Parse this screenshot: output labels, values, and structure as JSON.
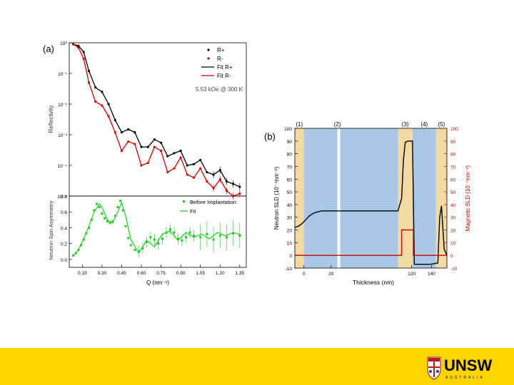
{
  "slide": {
    "panel_a_label": "(a)",
    "panel_b_label": "(b)",
    "logo_text": "UNSW",
    "logo_subtext": "AUSTRALIA",
    "footer_color": "#FFD400"
  },
  "chart_data": [
    {
      "type": "scatter",
      "panel": "a-top",
      "ylabel": "Reflectivity",
      "yscale": "log",
      "ylim": [
        1e-05,
        1
      ],
      "yticks": [
        "10⁰",
        "10⁻¹",
        "10⁻²",
        "10⁻³",
        "10⁻⁴",
        "10⁻⁵"
      ],
      "xlim": [
        0.05,
        1.4
      ],
      "legend": {
        "position": "top-right",
        "entries": [
          "R+",
          "R-",
          "Fit R+",
          "Fit R-"
        ]
      },
      "annotation": "5.53 kOe @ 300 K",
      "series": [
        {
          "name": "R+",
          "color": "#000000",
          "x": [
            0.08,
            0.12,
            0.16,
            0.2,
            0.25,
            0.3,
            0.35,
            0.4,
            0.45,
            0.5,
            0.55,
            0.6,
            0.65,
            0.7,
            0.75,
            0.8,
            0.85,
            0.9,
            0.95,
            1.0,
            1.05,
            1.1,
            1.15,
            1.2,
            1.25,
            1.3,
            1.35
          ],
          "y": [
            0.9,
            0.8,
            0.5,
            0.12,
            0.035,
            0.025,
            0.01,
            0.003,
            0.0012,
            0.0015,
            0.0012,
            0.0004,
            0.0004,
            0.0007,
            0.00055,
            0.0002,
            0.00025,
            0.0003,
            0.0001,
            0.00011,
            0.00015,
            6e-05,
            5e-05,
            7e-05,
            3e-05,
            2.5e-05,
            2e-05
          ]
        },
        {
          "name": "R-",
          "color": "#cc0000",
          "x": [
            0.08,
            0.12,
            0.16,
            0.2,
            0.25,
            0.3,
            0.35,
            0.4,
            0.45,
            0.5,
            0.55,
            0.6,
            0.65,
            0.7,
            0.75,
            0.8,
            0.85,
            0.9,
            0.95,
            1.0,
            1.05,
            1.1,
            1.15,
            1.2,
            1.25,
            1.3,
            1.35
          ],
          "y": [
            0.9,
            0.7,
            0.3,
            0.05,
            0.012,
            0.009,
            0.004,
            0.0012,
            0.0003,
            0.0006,
            0.0005,
            0.0001,
            0.00012,
            0.0004,
            0.0003,
            6e-05,
            8e-05,
            0.00018,
            5e-05,
            4e-05,
            8e-05,
            3e-05,
            1.8e-05,
            3.5e-05,
            1.5e-05,
            1e-05,
            1.2e-05
          ]
        }
      ]
    },
    {
      "type": "scatter",
      "panel": "a-bottom",
      "ylabel": "Neutron Spin Asymmetry",
      "xlabel": "Q (nm⁻¹)",
      "xlim": [
        0.05,
        1.4
      ],
      "ylim": [
        -0.1,
        0.8
      ],
      "xticks": [
        0.15,
        0.3,
        0.45,
        0.6,
        0.75,
        0.9,
        1.05,
        1.2,
        1.35
      ],
      "yticks": [
        0.0,
        0.2,
        0.4,
        0.6,
        0.8
      ],
      "legend": {
        "position": "top-right",
        "entries": [
          "Before Implantation",
          "Fit"
        ]
      },
      "series": [
        {
          "name": "Before Implantation",
          "color": "#22cc22",
          "x": [
            0.08,
            0.1,
            0.12,
            0.14,
            0.16,
            0.18,
            0.2,
            0.22,
            0.24,
            0.26,
            0.28,
            0.3,
            0.32,
            0.34,
            0.36,
            0.38,
            0.4,
            0.42,
            0.44,
            0.46,
            0.48,
            0.5,
            0.52,
            0.55,
            0.58,
            0.61,
            0.64,
            0.67,
            0.7,
            0.73,
            0.76,
            0.79,
            0.82,
            0.85,
            0.88,
            0.91,
            0.94,
            0.97,
            1.0,
            1.05,
            1.1,
            1.15,
            1.2,
            1.25,
            1.3,
            1.35
          ],
          "y": [
            0.05,
            0.08,
            0.12,
            0.18,
            0.25,
            0.33,
            0.4,
            0.5,
            0.62,
            0.7,
            0.66,
            0.58,
            0.52,
            0.48,
            0.46,
            0.48,
            0.55,
            0.66,
            0.74,
            0.62,
            0.42,
            0.27,
            0.18,
            0.12,
            0.1,
            0.14,
            0.22,
            0.28,
            0.25,
            0.2,
            0.26,
            0.34,
            0.38,
            0.34,
            0.26,
            0.24,
            0.28,
            0.34,
            0.3,
            0.28,
            0.32,
            0.25,
            0.3,
            0.28,
            0.33,
            0.3
          ]
        },
        {
          "name": "Fit",
          "color": "#22cc22",
          "x": [
            0.08,
            0.12,
            0.16,
            0.2,
            0.24,
            0.28,
            0.3,
            0.34,
            0.38,
            0.42,
            0.45,
            0.48,
            0.52,
            0.58,
            0.64,
            0.7,
            0.76,
            0.82,
            0.88,
            0.94,
            1.0,
            1.06,
            1.12,
            1.18,
            1.24,
            1.3,
            1.36
          ],
          "y": [
            0.04,
            0.12,
            0.26,
            0.42,
            0.6,
            0.7,
            0.66,
            0.5,
            0.46,
            0.6,
            0.72,
            0.55,
            0.25,
            0.08,
            0.24,
            0.16,
            0.32,
            0.36,
            0.24,
            0.34,
            0.28,
            0.32,
            0.26,
            0.34,
            0.3,
            0.34,
            0.31
          ]
        }
      ]
    },
    {
      "type": "line",
      "panel": "b",
      "xlabel": "Thickness (nm)",
      "ylabel": "Neutron SLD (10⁻⁴nm⁻²)",
      "ylabel_right": "Magnetic SLD (10⁻⁴nm⁻²)",
      "xlim": [
        -10,
        158
      ],
      "ylim": [
        -10,
        100
      ],
      "xticks": [
        0,
        20,
        120,
        140
      ],
      "yticks": [
        -10,
        0,
        10,
        20,
        30,
        40,
        50,
        60,
        70,
        80,
        90,
        100
      ],
      "regions": [
        "(1)",
        "(2)",
        "(3)",
        "(4)",
        "(5)"
      ],
      "series": [
        {
          "name": "Neutron SLD",
          "color": "#000000",
          "x": [
            -10,
            -6,
            -2,
            2,
            6,
            10,
            14,
            20,
            28,
            36,
            104,
            108,
            110,
            112,
            115,
            118,
            120,
            122,
            125,
            130,
            140,
            148,
            150,
            152,
            155,
            158
          ],
          "y": [
            22,
            23,
            25,
            28,
            31,
            33,
            34,
            35,
            35,
            35,
            35,
            45,
            75,
            89,
            90,
            90,
            90,
            -7,
            -7,
            -7,
            -7,
            -6,
            30,
            39,
            5,
            0
          ]
        },
        {
          "name": "Magnetic SLD",
          "color": "#cc0000",
          "x": [
            -10,
            108,
            108,
            121,
            121,
            158
          ],
          "y": [
            0,
            0,
            20,
            20,
            0,
            0
          ]
        }
      ]
    }
  ]
}
